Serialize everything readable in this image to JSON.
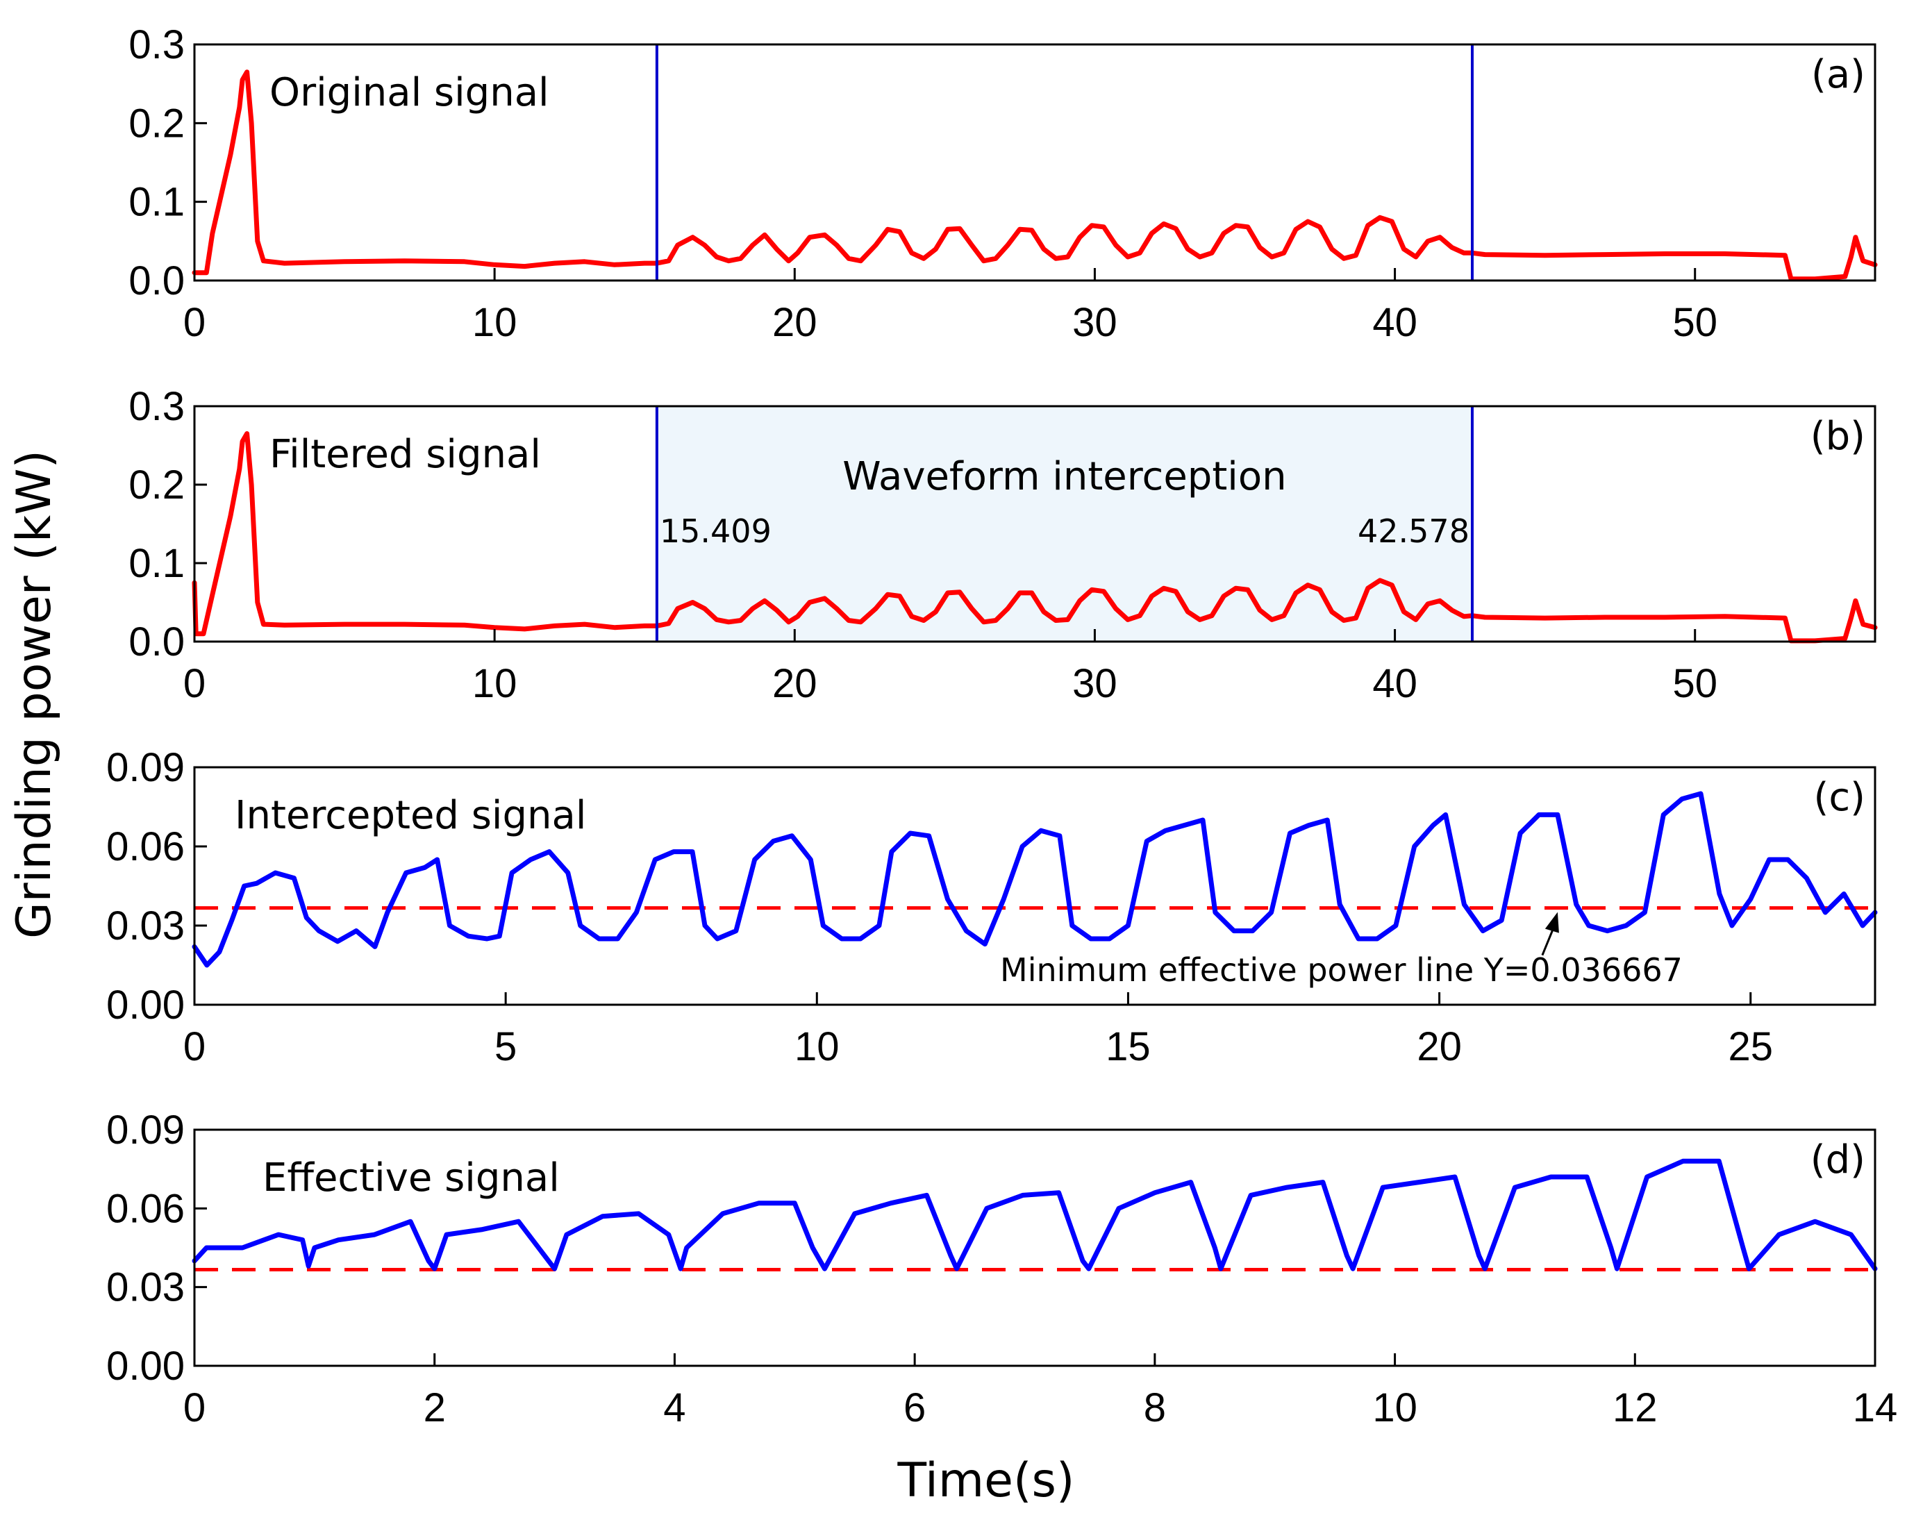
{
  "figure": {
    "ylabel": "Grinding power (kW)",
    "xlabel": "Time(s)"
  },
  "colors": {
    "red_signal": "#ff0000",
    "blue_signal": "#0000ff",
    "marker_line": "#0000cc",
    "threshold": "#ff0000",
    "highlight": "#eef6fc"
  },
  "chart_data": [
    {
      "id": "a",
      "type": "line",
      "panel_label": "(a)",
      "title": "Original signal",
      "xlim": [
        0,
        56
      ],
      "ylim": [
        0,
        0.3
      ],
      "xticks": [
        0,
        10,
        20,
        30,
        40,
        50
      ],
      "xtick_labels": [
        "0",
        "10",
        "20",
        "30",
        "40",
        "50"
      ],
      "yticks": [
        0.0,
        0.1,
        0.2,
        0.3
      ],
      "ytick_labels": [
        "0.0",
        "0.1",
        "0.2",
        "0.3"
      ],
      "vlines": [
        15.409,
        42.578
      ],
      "series": [
        {
          "name": "Original signal",
          "color": "red",
          "x": [
            0,
            0.4,
            0.6,
            0.9,
            1.2,
            1.5,
            1.6,
            1.75,
            1.9,
            2.1,
            2.3,
            3,
            5,
            7,
            9,
            10,
            11,
            12,
            13,
            14,
            15,
            15.409,
            15.8,
            16.1,
            16.6,
            17,
            17.4,
            17.8,
            18.2,
            18.6,
            19,
            19.4,
            19.8,
            20.1,
            20.5,
            21,
            21.4,
            21.8,
            22.2,
            22.7,
            23.1,
            23.5,
            23.9,
            24.3,
            24.7,
            25.1,
            25.5,
            25.9,
            26.3,
            26.7,
            27.1,
            27.5,
            27.9,
            28.3,
            28.7,
            29.1,
            29.5,
            29.9,
            30.3,
            30.7,
            31.1,
            31.5,
            31.9,
            32.3,
            32.7,
            33.1,
            33.5,
            33.9,
            34.3,
            34.7,
            35.1,
            35.5,
            35.9,
            36.3,
            36.7,
            37.1,
            37.5,
            37.9,
            38.3,
            38.7,
            39.1,
            39.5,
            39.9,
            40.3,
            40.7,
            41.1,
            41.5,
            41.9,
            42.3,
            42.578,
            43,
            45,
            47,
            49,
            51,
            53,
            53.2,
            54,
            55,
            55.2,
            55.35,
            55.6,
            56
          ],
          "y": [
            0.01,
            0.01,
            0.06,
            0.11,
            0.16,
            0.22,
            0.255,
            0.265,
            0.2,
            0.05,
            0.025,
            0.022,
            0.024,
            0.025,
            0.024,
            0.02,
            0.018,
            0.022,
            0.024,
            0.02,
            0.022,
            0.022,
            0.025,
            0.045,
            0.055,
            0.045,
            0.03,
            0.025,
            0.028,
            0.045,
            0.058,
            0.04,
            0.025,
            0.035,
            0.055,
            0.058,
            0.045,
            0.028,
            0.025,
            0.045,
            0.065,
            0.062,
            0.035,
            0.028,
            0.04,
            0.065,
            0.066,
            0.045,
            0.025,
            0.028,
            0.045,
            0.065,
            0.064,
            0.04,
            0.028,
            0.03,
            0.055,
            0.07,
            0.068,
            0.045,
            0.03,
            0.035,
            0.06,
            0.072,
            0.066,
            0.04,
            0.03,
            0.035,
            0.06,
            0.07,
            0.068,
            0.042,
            0.03,
            0.035,
            0.065,
            0.075,
            0.068,
            0.04,
            0.028,
            0.032,
            0.07,
            0.08,
            0.075,
            0.04,
            0.03,
            0.05,
            0.055,
            0.042,
            0.035,
            0.035,
            0.033,
            0.032,
            0.033,
            0.034,
            0.034,
            0.032,
            0.002,
            0.002,
            0.005,
            0.03,
            0.055,
            0.025,
            0.02
          ]
        }
      ]
    },
    {
      "id": "b",
      "type": "line",
      "panel_label": "(b)",
      "title": "Filtered signal",
      "xlim": [
        0,
        56
      ],
      "ylim": [
        0,
        0.3
      ],
      "xticks": [
        0,
        10,
        20,
        30,
        40,
        50
      ],
      "xtick_labels": [
        "0",
        "10",
        "20",
        "30",
        "40",
        "50"
      ],
      "yticks": [
        0.0,
        0.1,
        0.2,
        0.3
      ],
      "ytick_labels": [
        "0.0",
        "0.1",
        "0.2",
        "0.3"
      ],
      "vlines": [
        15.409,
        42.578
      ],
      "shaded_region": [
        15.409,
        42.578
      ],
      "annotations": {
        "region_label": "Waveform interception",
        "left_value": "15.409",
        "right_value": "42.578"
      },
      "series": [
        {
          "name": "Filtered signal",
          "color": "red",
          "x": [
            0,
            0.05,
            0.1,
            0.3,
            0.6,
            0.9,
            1.2,
            1.5,
            1.6,
            1.75,
            1.9,
            2.1,
            2.3,
            3,
            5,
            7,
            9,
            10,
            11,
            12,
            13,
            14,
            15,
            15.409,
            15.8,
            16.1,
            16.6,
            17,
            17.4,
            17.8,
            18.2,
            18.6,
            19,
            19.4,
            19.8,
            20.1,
            20.5,
            21,
            21.4,
            21.8,
            22.2,
            22.7,
            23.1,
            23.5,
            23.9,
            24.3,
            24.7,
            25.1,
            25.5,
            25.9,
            26.3,
            26.7,
            27.1,
            27.5,
            27.9,
            28.3,
            28.7,
            29.1,
            29.5,
            29.9,
            30.3,
            30.7,
            31.1,
            31.5,
            31.9,
            32.3,
            32.7,
            33.1,
            33.5,
            33.9,
            34.3,
            34.7,
            35.1,
            35.5,
            35.9,
            36.3,
            36.7,
            37.1,
            37.5,
            37.9,
            38.3,
            38.7,
            39.1,
            39.5,
            39.9,
            40.3,
            40.7,
            41.1,
            41.5,
            41.9,
            42.3,
            42.578,
            43,
            45,
            47,
            49,
            51,
            53,
            53.2,
            54,
            55,
            55.2,
            55.35,
            55.6,
            56
          ],
          "y": [
            0.075,
            0.01,
            0.01,
            0.01,
            0.06,
            0.11,
            0.16,
            0.22,
            0.255,
            0.265,
            0.2,
            0.05,
            0.022,
            0.021,
            0.022,
            0.022,
            0.021,
            0.018,
            0.016,
            0.02,
            0.022,
            0.018,
            0.02,
            0.02,
            0.023,
            0.042,
            0.05,
            0.042,
            0.028,
            0.025,
            0.027,
            0.042,
            0.052,
            0.04,
            0.025,
            0.032,
            0.05,
            0.055,
            0.042,
            0.027,
            0.025,
            0.042,
            0.06,
            0.058,
            0.032,
            0.027,
            0.038,
            0.062,
            0.063,
            0.042,
            0.025,
            0.027,
            0.042,
            0.062,
            0.062,
            0.038,
            0.027,
            0.028,
            0.052,
            0.066,
            0.064,
            0.042,
            0.028,
            0.033,
            0.058,
            0.068,
            0.064,
            0.038,
            0.028,
            0.033,
            0.058,
            0.068,
            0.066,
            0.04,
            0.028,
            0.033,
            0.062,
            0.072,
            0.066,
            0.038,
            0.027,
            0.03,
            0.068,
            0.078,
            0.072,
            0.038,
            0.028,
            0.048,
            0.052,
            0.04,
            0.032,
            0.033,
            0.031,
            0.03,
            0.031,
            0.031,
            0.032,
            0.03,
            0.001,
            0.001,
            0.004,
            0.03,
            0.052,
            0.022,
            0.018
          ]
        }
      ]
    },
    {
      "id": "c",
      "type": "line",
      "panel_label": "(c)",
      "title": "Intercepted signal",
      "xlim": [
        0,
        27
      ],
      "ylim": [
        0,
        0.09
      ],
      "xticks": [
        0,
        5,
        10,
        15,
        20,
        25
      ],
      "xtick_labels": [
        "0",
        "5",
        "10",
        "15",
        "20",
        "25"
      ],
      "yticks": [
        0.0,
        0.03,
        0.06,
        0.09
      ],
      "ytick_labels": [
        "0.00",
        "0.03",
        "0.06",
        "0.09"
      ],
      "threshold": 0.036667,
      "annotations": {
        "threshold_label": "Minimum effective power line Y=0.036667",
        "arrow_target_x": 21.9
      },
      "series": [
        {
          "name": "Intercepted signal",
          "color": "blue",
          "x": [
            0,
            0.2,
            0.4,
            0.6,
            0.8,
            1.0,
            1.3,
            1.6,
            1.8,
            2.0,
            2.3,
            2.6,
            2.9,
            3.1,
            3.4,
            3.7,
            3.9,
            4.1,
            4.4,
            4.7,
            4.9,
            5.1,
            5.4,
            5.7,
            6.0,
            6.2,
            6.5,
            6.8,
            7.1,
            7.4,
            7.7,
            8.0,
            8.2,
            8.4,
            8.7,
            9.0,
            9.3,
            9.6,
            9.9,
            10.1,
            10.4,
            10.7,
            11.0,
            11.2,
            11.5,
            11.8,
            12.1,
            12.4,
            12.7,
            13.0,
            13.3,
            13.6,
            13.9,
            14.1,
            14.4,
            14.7,
            15.0,
            15.3,
            15.6,
            15.9,
            16.2,
            16.4,
            16.7,
            17.0,
            17.3,
            17.6,
            17.9,
            18.2,
            18.4,
            18.7,
            19.0,
            19.3,
            19.6,
            19.9,
            20.1,
            20.4,
            20.7,
            21.0,
            21.3,
            21.6,
            21.9,
            22.2,
            22.4,
            22.7,
            23.0,
            23.3,
            23.6,
            23.9,
            24.2,
            24.5,
            24.7,
            25.0,
            25.3,
            25.6,
            25.9,
            26.2,
            26.5,
            26.8,
            27.0
          ],
          "y": [
            0.022,
            0.015,
            0.02,
            0.032,
            0.045,
            0.046,
            0.05,
            0.048,
            0.033,
            0.028,
            0.024,
            0.028,
            0.022,
            0.035,
            0.05,
            0.052,
            0.055,
            0.03,
            0.026,
            0.025,
            0.026,
            0.05,
            0.055,
            0.058,
            0.05,
            0.03,
            0.025,
            0.025,
            0.035,
            0.055,
            0.058,
            0.058,
            0.03,
            0.025,
            0.028,
            0.055,
            0.062,
            0.064,
            0.055,
            0.03,
            0.025,
            0.025,
            0.03,
            0.058,
            0.065,
            0.064,
            0.04,
            0.028,
            0.023,
            0.04,
            0.06,
            0.066,
            0.064,
            0.03,
            0.025,
            0.025,
            0.03,
            0.062,
            0.066,
            0.068,
            0.07,
            0.035,
            0.028,
            0.028,
            0.035,
            0.065,
            0.068,
            0.07,
            0.038,
            0.025,
            0.025,
            0.03,
            0.06,
            0.068,
            0.072,
            0.038,
            0.028,
            0.032,
            0.065,
            0.072,
            0.072,
            0.038,
            0.03,
            0.028,
            0.03,
            0.035,
            0.072,
            0.078,
            0.08,
            0.042,
            0.03,
            0.04,
            0.055,
            0.055,
            0.048,
            0.035,
            0.042,
            0.03,
            0.035
          ]
        }
      ]
    },
    {
      "id": "d",
      "type": "line",
      "panel_label": "(d)",
      "title": "Effective signal",
      "xlim": [
        0,
        14
      ],
      "ylim": [
        0,
        0.09
      ],
      "xticks": [
        0,
        2,
        4,
        6,
        8,
        10,
        12,
        14
      ],
      "xtick_labels": [
        "0",
        "2",
        "4",
        "6",
        "8",
        "10",
        "12",
        "14"
      ],
      "yticks": [
        0.0,
        0.03,
        0.06,
        0.09
      ],
      "ytick_labels": [
        "0.00",
        "0.03",
        "0.06",
        "0.09"
      ],
      "threshold": 0.036667,
      "series": [
        {
          "name": "Effective signal",
          "color": "blue",
          "x": [
            0,
            0.1,
            0.4,
            0.7,
            0.9,
            0.95,
            1.0,
            1.2,
            1.5,
            1.8,
            1.95,
            2.0,
            2.1,
            2.4,
            2.7,
            2.95,
            3.0,
            3.1,
            3.4,
            3.7,
            3.95,
            4.05,
            4.1,
            4.4,
            4.7,
            5.0,
            5.15,
            5.25,
            5.5,
            5.8,
            6.1,
            6.3,
            6.35,
            6.6,
            6.9,
            7.2,
            7.4,
            7.45,
            7.7,
            8.0,
            8.3,
            8.5,
            8.55,
            8.8,
            9.1,
            9.4,
            9.6,
            9.65,
            9.9,
            10.2,
            10.5,
            10.7,
            10.75,
            11.0,
            11.3,
            11.6,
            11.8,
            11.85,
            12.1,
            12.4,
            12.7,
            12.9,
            12.95,
            13.2,
            13.5,
            13.8,
            14.0
          ],
          "y": [
            0.04,
            0.045,
            0.045,
            0.05,
            0.048,
            0.038,
            0.045,
            0.048,
            0.05,
            0.055,
            0.04,
            0.037,
            0.05,
            0.052,
            0.055,
            0.04,
            0.037,
            0.05,
            0.057,
            0.058,
            0.05,
            0.037,
            0.045,
            0.058,
            0.062,
            0.062,
            0.045,
            0.037,
            0.058,
            0.062,
            0.065,
            0.042,
            0.037,
            0.06,
            0.065,
            0.066,
            0.04,
            0.037,
            0.06,
            0.066,
            0.07,
            0.045,
            0.037,
            0.065,
            0.068,
            0.07,
            0.042,
            0.037,
            0.068,
            0.07,
            0.072,
            0.042,
            0.037,
            0.068,
            0.072,
            0.072,
            0.045,
            0.037,
            0.072,
            0.078,
            0.078,
            0.045,
            0.037,
            0.05,
            0.055,
            0.05,
            0.037
          ]
        }
      ]
    }
  ]
}
